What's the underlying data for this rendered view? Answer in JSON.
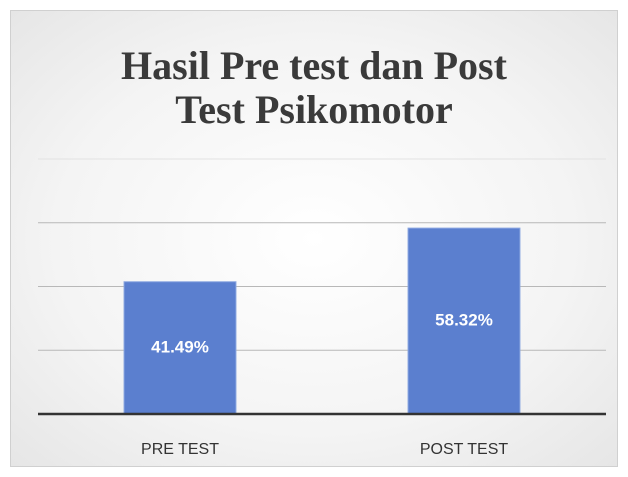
{
  "chart_data": {
    "type": "bar",
    "title": "Hasil Pre test dan Post Test Psikomotor",
    "categories": [
      "PRE TEST",
      "POST TEST"
    ],
    "values": [
      41.49,
      58.32
    ],
    "value_labels": [
      "41.49%",
      "58.32%"
    ],
    "color": "#5b7fcf",
    "ylim": [
      0,
      80
    ],
    "yticks": [
      0,
      20,
      40,
      60,
      80
    ],
    "grid": true
  }
}
